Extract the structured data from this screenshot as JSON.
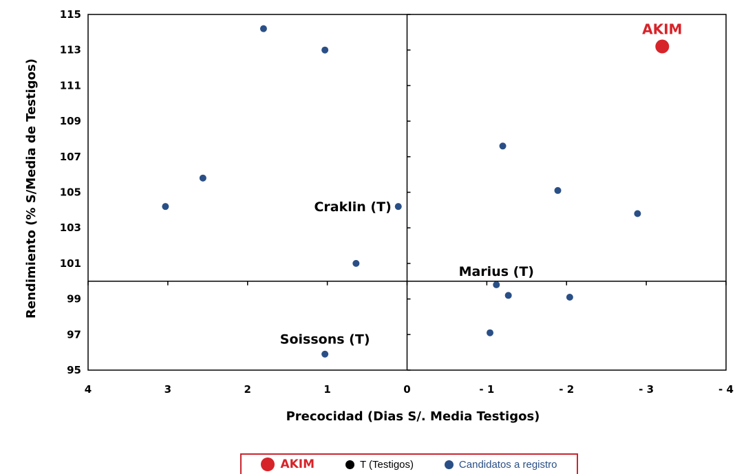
{
  "chart_data": {
    "type": "scatter",
    "xlabel": "Precocidad (Dias S/. Media Testigos)",
    "ylabel": "Rendimiento (%  S/Media de Testigos)",
    "xlim": [
      4,
      -4
    ],
    "ylim": [
      95,
      115
    ],
    "x_reversed": true,
    "x_tick_labels": [
      "4",
      "3",
      "2",
      "1",
      "0",
      "- 1",
      "- 2",
      "- 3",
      "- 4"
    ],
    "x_tick_values": [
      4,
      3,
      2,
      1,
      0,
      -1,
      -2,
      -3,
      -4
    ],
    "y_tick_labels": [
      "95",
      "97",
      "99",
      "101",
      "103",
      "105",
      "107",
      "109",
      "111",
      "113",
      "115"
    ],
    "y_tick_values": [
      95,
      97,
      99,
      101,
      103,
      105,
      107,
      109,
      111,
      113,
      115
    ],
    "reference_lines": {
      "x": 0,
      "y": 100
    },
    "grid": false,
    "legend_position": "bottom",
    "series": [
      {
        "name": "AKIM",
        "color": "#d6242a",
        "points": [
          {
            "x": -3.2,
            "y": 113.2,
            "label": "AKIM"
          }
        ]
      },
      {
        "name": "T (Testigos)",
        "color": "#000000",
        "points": []
      },
      {
        "name": "Candidatos a registro",
        "color": "#2a4f86",
        "points": [
          {
            "x": 1.8,
            "y": 114.2
          },
          {
            "x": 1.03,
            "y": 113.0
          },
          {
            "x": 2.56,
            "y": 105.8
          },
          {
            "x": 3.03,
            "y": 104.2
          },
          {
            "x": 0.11,
            "y": 104.2,
            "label": "Craklin (T)"
          },
          {
            "x": 0.64,
            "y": 101.0
          },
          {
            "x": 1.03,
            "y": 95.9,
            "label": "Soissons (T)"
          },
          {
            "x": -1.2,
            "y": 107.6
          },
          {
            "x": -1.89,
            "y": 105.1
          },
          {
            "x": -2.89,
            "y": 103.8
          },
          {
            "x": -1.12,
            "y": 99.8,
            "label": "Marius (T)"
          },
          {
            "x": -1.27,
            "y": 99.2
          },
          {
            "x": -2.04,
            "y": 99.1
          },
          {
            "x": -1.04,
            "y": 97.1
          }
        ]
      }
    ]
  },
  "legend": {
    "akim": "AKIM",
    "testigos": "T (Testigos)",
    "candidatos": "Candidatos a registro"
  }
}
